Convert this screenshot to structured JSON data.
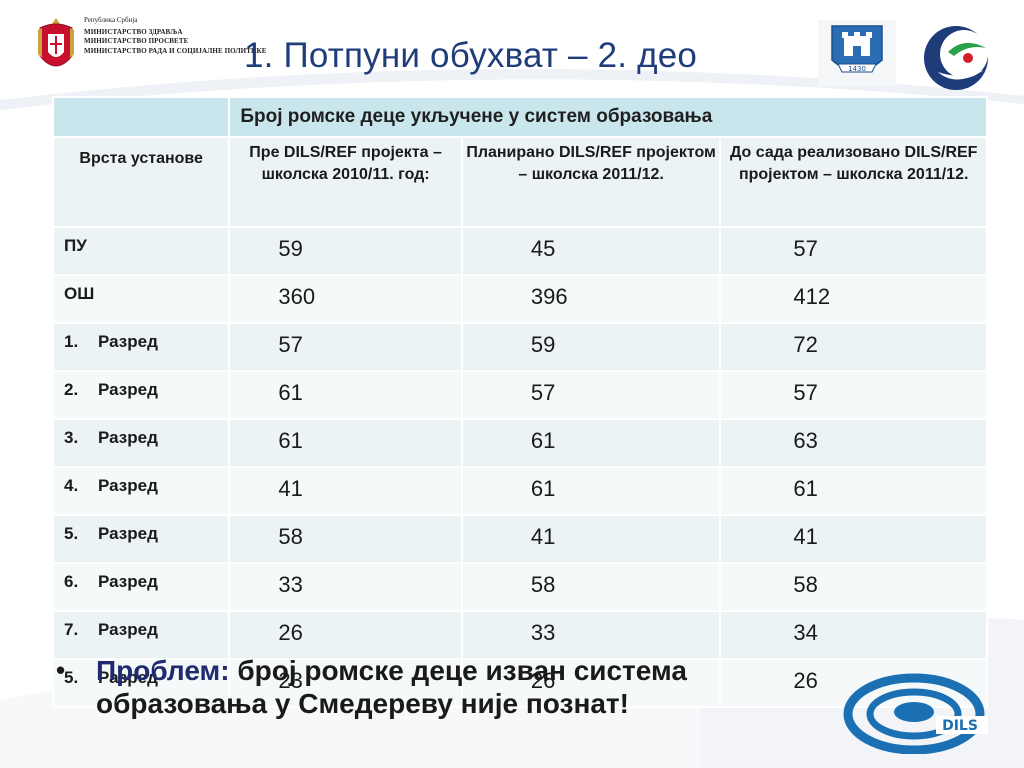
{
  "header": {
    "ministry_country": "Република Србија",
    "ministry_lines": [
      "МИНИСТАРСТВО ЗДРАВЉА",
      "МИНИСТАРСТВО ПРОСВЕТЕ",
      "МИНИСТАРСТВО РАДА И СОЦИЈАЛНЕ ПОЛИТИКЕ"
    ],
    "title": "1. Потпуни обухват – 2. део",
    "city_logo_year": "1430"
  },
  "table": {
    "group_header": "Број ромске деце укључене у систем образовања",
    "columns": [
      "Врста установе",
      "Пре DILS/REF пројекта – школска 2010/11. год:",
      "Планирано DILS/REF пројектом – школска 2011/12.",
      "До сада реализовано DILS/REF пројектом – школска 2011/12."
    ],
    "rows": [
      {
        "num": "",
        "label": "ПУ",
        "values": [
          "59",
          "45",
          "57"
        ]
      },
      {
        "num": "",
        "label": "ОШ",
        "values": [
          "360",
          "396",
          "412"
        ]
      },
      {
        "num": "1.",
        "label": "Разред",
        "values": [
          "57",
          "59",
          "72"
        ]
      },
      {
        "num": "2.",
        "label": "Разред",
        "values": [
          "61",
          "57",
          "57"
        ]
      },
      {
        "num": "3.",
        "label": "Разред",
        "values": [
          "61",
          "61",
          "63"
        ]
      },
      {
        "num": "4.",
        "label": "Разред",
        "values": [
          "41",
          "61",
          "61"
        ]
      },
      {
        "num": "5.",
        "label": "Разред",
        "values": [
          "58",
          "41",
          "41"
        ]
      },
      {
        "num": "6.",
        "label": "Разред",
        "values": [
          "33",
          "58",
          "58"
        ]
      },
      {
        "num": "7.",
        "label": "Разред",
        "values": [
          "26",
          "33",
          "34"
        ]
      },
      {
        "num": "5.",
        "label": "Разред",
        "values": [
          "23",
          "26",
          "26"
        ]
      }
    ]
  },
  "bullet": {
    "lead": "Проблем:",
    "text": " број ромске деце изван система образовања у Смедереву није познат!"
  },
  "logo_text": "DILS",
  "colors": {
    "title": "#1f3d7a",
    "group_header_bg": "#c8e6ec",
    "cell_bg": "#ebf3f5",
    "logo_blue": "#1b6fb3"
  }
}
